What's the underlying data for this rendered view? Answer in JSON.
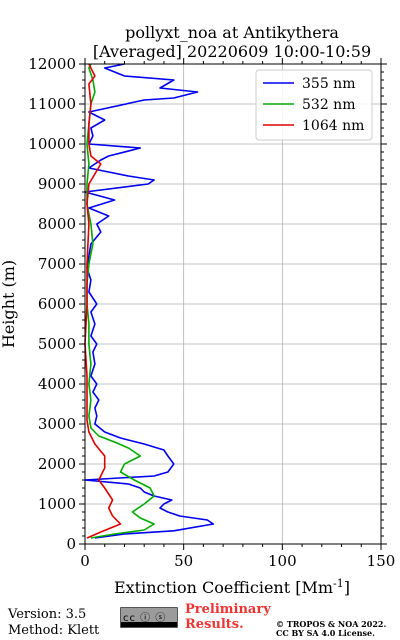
{
  "chart_data": {
    "type": "line",
    "title": "pollyxt_noa at Antikythera",
    "subtitle": "[Averaged] 20220609 10:00-10:59",
    "xlabel": "Extinction Coefficient [Mm",
    "xlabel_superscript": "-1",
    "xlabel_suffix": "]",
    "ylabel": "Height (m)",
    "xlim": [
      0,
      150
    ],
    "ylim": [
      0,
      12000
    ],
    "xticks": [
      0,
      50,
      100,
      150
    ],
    "yticks": [
      0,
      1000,
      2000,
      3000,
      4000,
      5000,
      6000,
      7000,
      8000,
      9000,
      10000,
      11000,
      12000
    ],
    "grid": true,
    "legend_position": "top-right",
    "series": [
      {
        "name": "355 nm",
        "color": "#0000ee",
        "points": [
          [
            5,
            150
          ],
          [
            20,
            250
          ],
          [
            45,
            330
          ],
          [
            65,
            500
          ],
          [
            62,
            600
          ],
          [
            48,
            700
          ],
          [
            42,
            800
          ],
          [
            38,
            900
          ],
          [
            40,
            1000
          ],
          [
            44,
            1100
          ],
          [
            35,
            1200
          ],
          [
            30,
            1300
          ],
          [
            28,
            1400
          ],
          [
            22,
            1500
          ],
          [
            0,
            1600
          ],
          [
            35,
            1700
          ],
          [
            42,
            1800
          ],
          [
            45,
            2000
          ],
          [
            42,
            2200
          ],
          [
            40,
            2350
          ],
          [
            30,
            2500
          ],
          [
            18,
            2650
          ],
          [
            10,
            2800
          ],
          [
            5,
            3000
          ],
          [
            6,
            3200
          ],
          [
            5,
            3400
          ],
          [
            7,
            3600
          ],
          [
            4,
            3800
          ],
          [
            6,
            4000
          ],
          [
            3,
            4200
          ],
          [
            5,
            4500
          ],
          [
            4,
            4800
          ],
          [
            6,
            5000
          ],
          [
            3,
            5200
          ],
          [
            5,
            5500
          ],
          [
            3,
            5800
          ],
          [
            6,
            6000
          ],
          [
            2,
            6300
          ],
          [
            3,
            6600
          ],
          [
            1,
            6900
          ],
          [
            2,
            7200
          ],
          [
            3,
            7500
          ],
          [
            8,
            7800
          ],
          [
            6,
            8000
          ],
          [
            12,
            8200
          ],
          [
            2,
            8400
          ],
          [
            15,
            8600
          ],
          [
            0,
            8800
          ],
          [
            32,
            9000
          ],
          [
            35,
            9100
          ],
          [
            22,
            9200
          ],
          [
            2,
            9400
          ],
          [
            8,
            9600
          ],
          [
            12,
            9700
          ],
          [
            28,
            9900
          ],
          [
            2,
            10000
          ],
          [
            4,
            10200
          ],
          [
            3,
            10400
          ],
          [
            10,
            10600
          ],
          [
            2,
            10800
          ],
          [
            30,
            11100
          ],
          [
            45,
            11150
          ],
          [
            57,
            11300
          ],
          [
            38,
            11400
          ],
          [
            45,
            11600
          ],
          [
            20,
            11700
          ],
          [
            10,
            11900
          ],
          [
            20,
            12000
          ]
        ]
      },
      {
        "name": "532 nm",
        "color": "#00aa00",
        "points": [
          [
            3,
            150
          ],
          [
            15,
            250
          ],
          [
            30,
            350
          ],
          [
            35,
            500
          ],
          [
            28,
            650
          ],
          [
            24,
            800
          ],
          [
            30,
            1000
          ],
          [
            35,
            1200
          ],
          [
            33,
            1400
          ],
          [
            25,
            1600
          ],
          [
            18,
            1800
          ],
          [
            20,
            2000
          ],
          [
            28,
            2200
          ],
          [
            22,
            2400
          ],
          [
            15,
            2550
          ],
          [
            7,
            2700
          ],
          [
            3,
            2900
          ],
          [
            2,
            3200
          ],
          [
            3,
            3600
          ],
          [
            2,
            4000
          ],
          [
            3,
            4500
          ],
          [
            2,
            5000
          ],
          [
            2,
            5500
          ],
          [
            1,
            6000
          ],
          [
            1,
            6500
          ],
          [
            2,
            7000
          ],
          [
            4,
            7500
          ],
          [
            3,
            8000
          ],
          [
            1,
            8500
          ],
          [
            1,
            9000
          ],
          [
            2,
            9500
          ],
          [
            1,
            10000
          ],
          [
            2,
            10500
          ],
          [
            3,
            11000
          ],
          [
            5,
            11300
          ],
          [
            4,
            11600
          ],
          [
            2,
            11900
          ],
          [
            3,
            12000
          ]
        ]
      },
      {
        "name": "1064 nm",
        "color": "#dd0000",
        "points": [
          [
            1,
            150
          ],
          [
            8,
            300
          ],
          [
            18,
            500
          ],
          [
            14,
            700
          ],
          [
            12,
            900
          ],
          [
            14,
            1100
          ],
          [
            10,
            1400
          ],
          [
            7,
            1600
          ],
          [
            10,
            1900
          ],
          [
            10,
            2200
          ],
          [
            5,
            2500
          ],
          [
            2,
            2800
          ],
          [
            1,
            3100
          ],
          [
            1,
            3600
          ],
          [
            1,
            4200
          ],
          [
            0,
            5000
          ],
          [
            1,
            6000
          ],
          [
            1,
            7000
          ],
          [
            2,
            8000
          ],
          [
            1,
            8500
          ],
          [
            2,
            9000
          ],
          [
            8,
            9500
          ],
          [
            3,
            9700
          ],
          [
            2,
            10000
          ],
          [
            2,
            10500
          ],
          [
            3,
            11000
          ],
          [
            2,
            11500
          ],
          [
            5,
            11700
          ],
          [
            2,
            12000
          ]
        ]
      }
    ]
  },
  "footer": {
    "version": "Version: 3.5",
    "method": "Method: Klett",
    "preliminary_line1": "Preliminary",
    "preliminary_line2": "Results.",
    "copyright_line1": "© TROPOS & NOA 2022.",
    "copyright_line2": "CC BY SA 4.0 License.",
    "cc_badge_text": "cc ⓘ ⓢ"
  }
}
